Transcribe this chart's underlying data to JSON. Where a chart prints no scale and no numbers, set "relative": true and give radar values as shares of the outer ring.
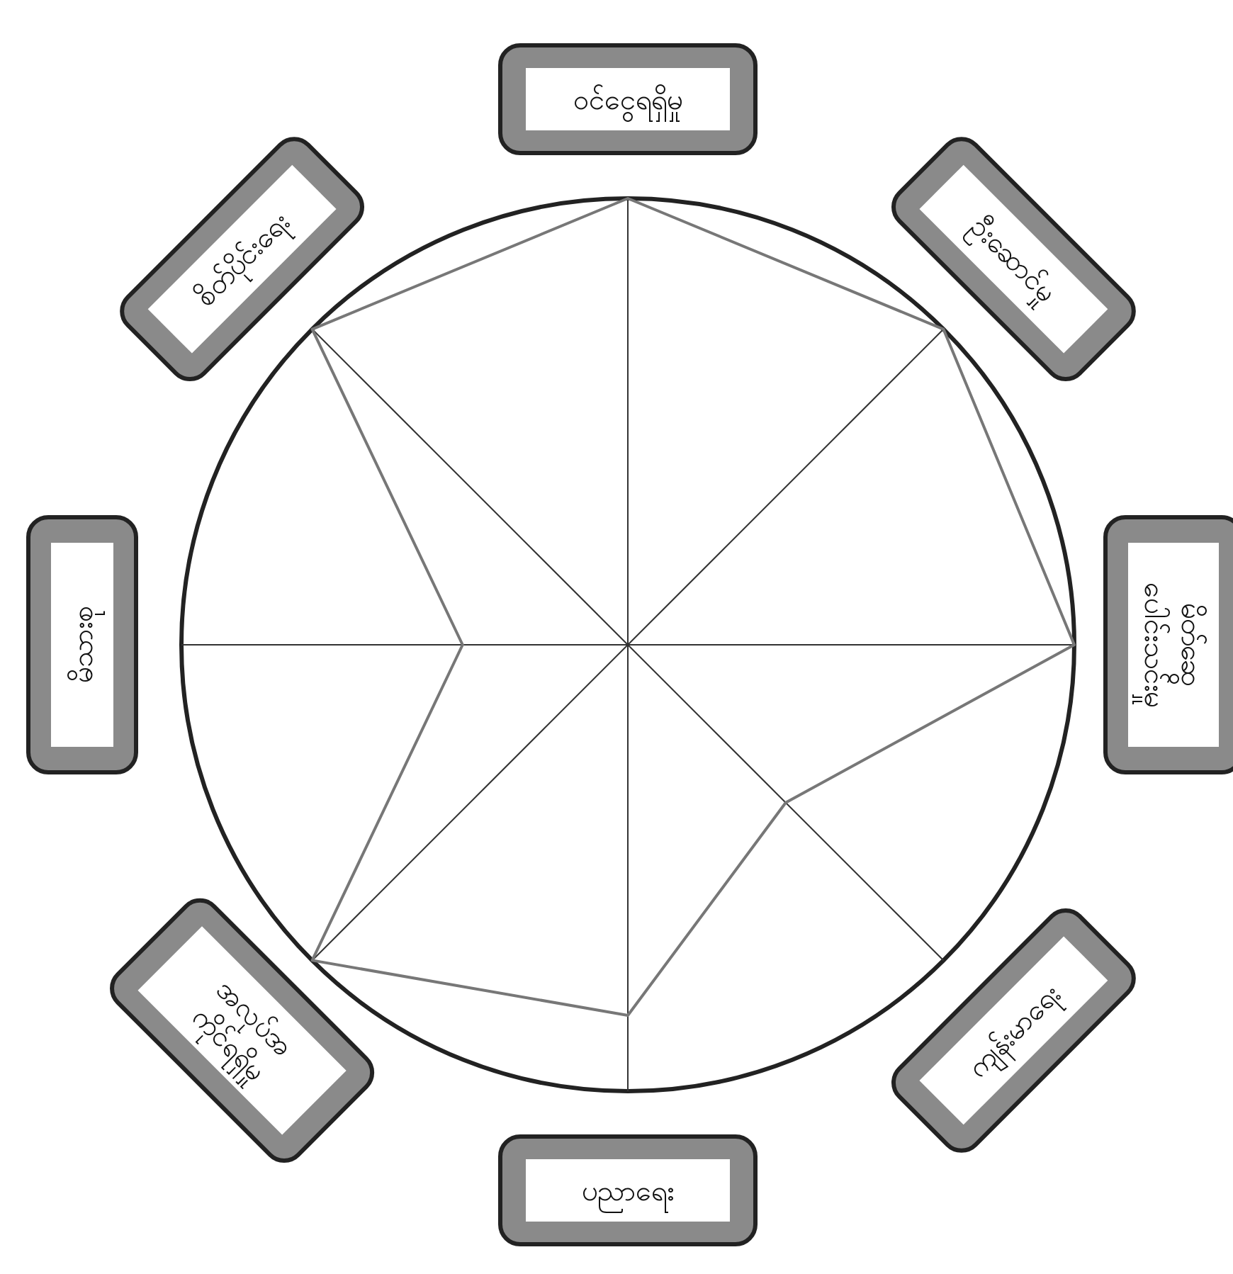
{
  "chart_data": {
    "type": "radar",
    "relative": true,
    "grid": true,
    "line_style": "solid",
    "categories": [
      "ဝင်ငွေရရှိမှု",
      "ဦးဆောင်မှု",
      "မိတ်ဆွေ\nပေါင်းသင်းမှု",
      "ကျန်းမာရေး",
      "ပညာရေး",
      "အလုပ်အ\nကိုင်ရရှိမှု",
      "မိသားစု",
      "စိတ်ပိုင်းရေး"
    ],
    "series": [
      {
        "color": "#777777",
        "values": [
          1,
          1,
          1,
          0.5,
          0.83,
          1,
          0.37,
          1
        ]
      }
    ]
  }
}
